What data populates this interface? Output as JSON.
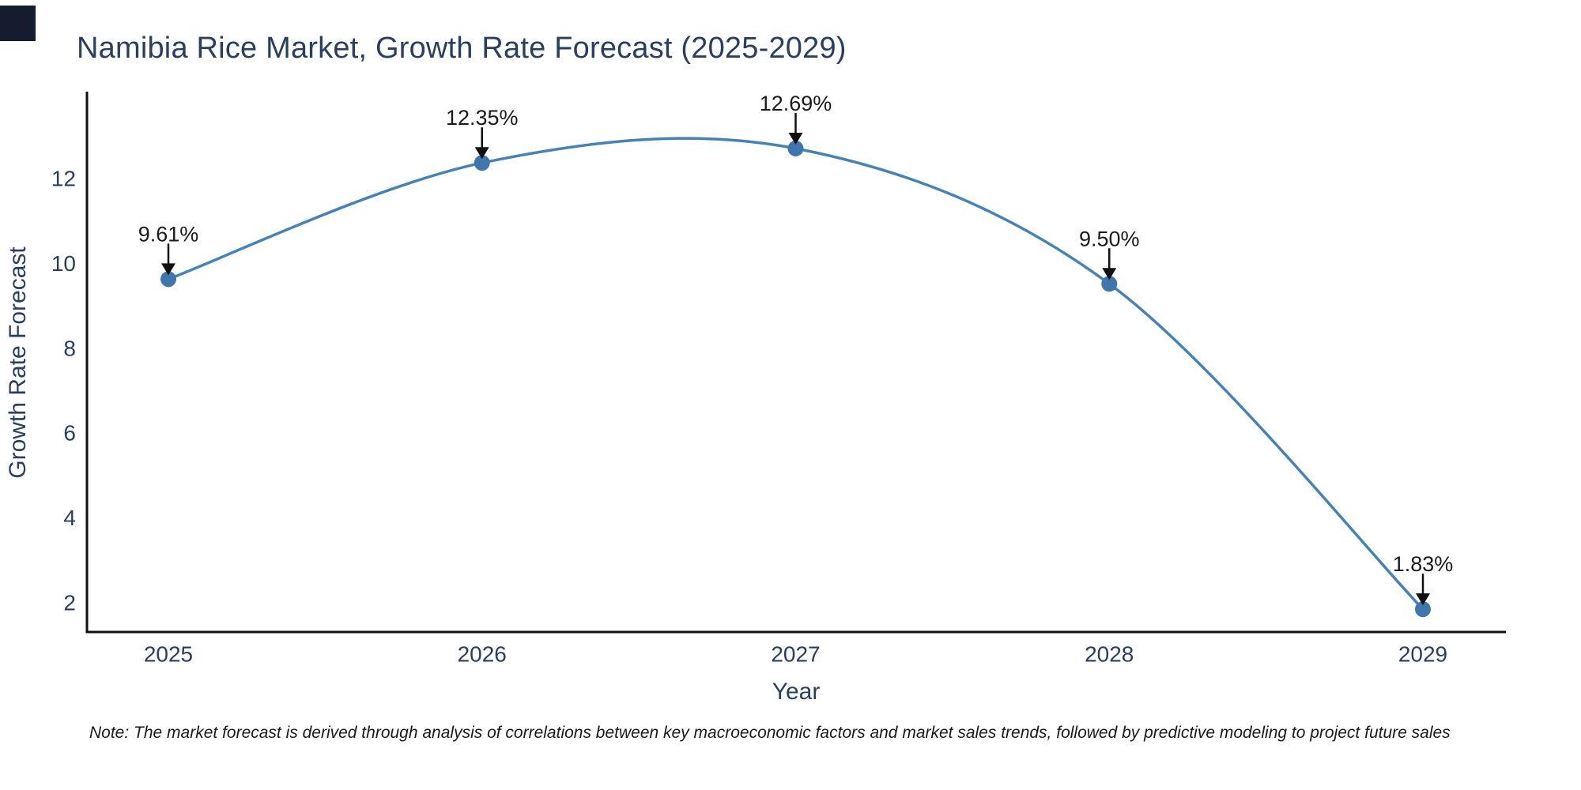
{
  "page": {
    "background": "#ffffff",
    "corner_square_color": "#151c30"
  },
  "chart_data": {
    "type": "line",
    "curve": "spline",
    "title": "Namibia Rice Market, Growth Rate Forecast (2025-2029)",
    "xlabel": "Year",
    "ylabel": "Growth Rate Forecast",
    "x": [
      2025,
      2026,
      2027,
      2028,
      2029
    ],
    "series": [
      {
        "name": "Growth Rate Forecast",
        "values": [
          9.61,
          12.35,
          12.69,
          9.5,
          1.83
        ]
      }
    ],
    "point_labels": [
      "9.61%",
      "12.35%",
      "12.69%",
      "9.50%",
      "1.83%"
    ],
    "y_ticks": [
      2,
      4,
      6,
      8,
      10,
      12
    ],
    "ylim": [
      1.25,
      14.05
    ],
    "grid": false,
    "legend_position": "none",
    "colors": {
      "line": "#4682b4",
      "marker": "#3f76ab",
      "axis_line": "#111111",
      "tick_text": "#2a3f5f",
      "title_text": "#2a3f5f",
      "annotation_text": "#1a1a1a",
      "annotation_arrow": "#111111"
    },
    "note": "Note: The market forecast is derived through analysis of correlations between key macroeconomic factors and market sales trends, followed by predictive modeling to project future sales"
  }
}
